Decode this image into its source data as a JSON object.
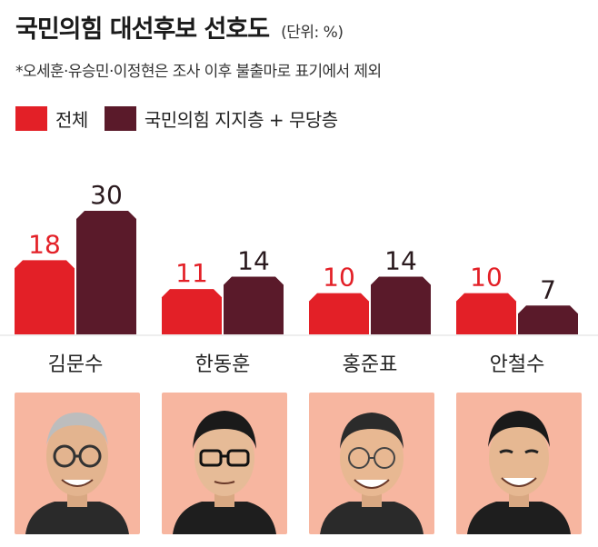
{
  "header": {
    "title": "국민의힘 대선후보 선호도",
    "unit": "(단위: %)",
    "note": "*오세훈·유승민·이정현은 조사 이후 불출마로 표기에서 제외"
  },
  "colors": {
    "series_total": "#e32027",
    "series_party": "#5a1a2a",
    "photo_bg": "#f7b6a0"
  },
  "chart_data": {
    "type": "bar",
    "title": "국민의힘 대선후보 선호도",
    "unit": "(단위: %)",
    "categories": [
      "김문수",
      "한동훈",
      "홍준표",
      "안철수"
    ],
    "series": [
      {
        "name": "전체",
        "values": [
          18,
          11,
          10,
          10
        ]
      },
      {
        "name": "국민의힘 지지층 + 무당층",
        "values": [
          30,
          14,
          14,
          7
        ]
      }
    ],
    "ylim": [
      0,
      30
    ],
    "grid": false,
    "legend": "top-left",
    "data_labels": true
  },
  "photos": [
    {
      "name": "김문수"
    },
    {
      "name": "한동훈"
    },
    {
      "name": "홍준표"
    },
    {
      "name": "안철수"
    }
  ]
}
